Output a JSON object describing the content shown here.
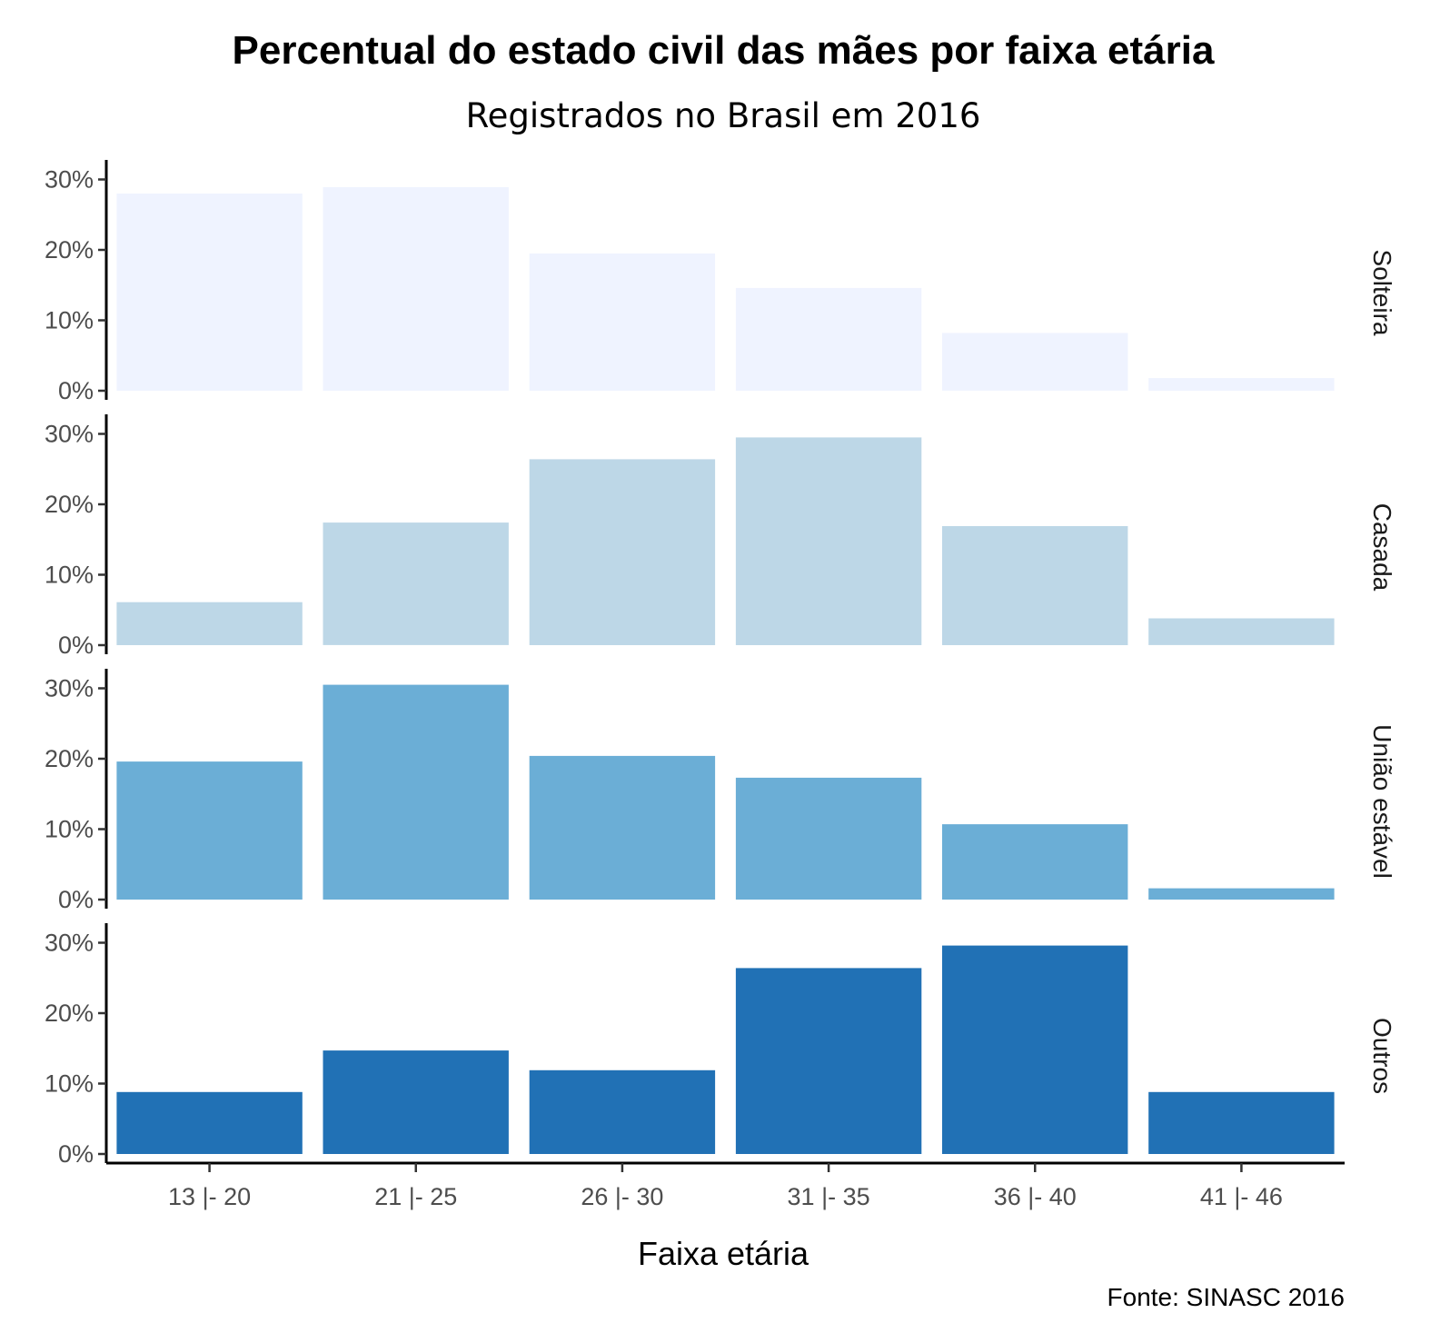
{
  "chart_data": {
    "type": "bar",
    "title": "Percentual do estado civil das mães por faixa etária",
    "subtitle": "Registrados no Brasil em 2016",
    "xlabel": "Faixa etária",
    "ylabel": "",
    "caption": "Fonte: SINASC 2016",
    "categories": [
      "13 |- 20",
      "21 |- 25",
      "26 |- 30",
      "31 |- 35",
      "36 |- 40",
      "41 |- 46"
    ],
    "yticks": [
      0,
      10,
      20,
      30
    ],
    "ytick_labels": [
      "0%",
      "10%",
      "20%",
      "30%"
    ],
    "ylim": [
      0,
      32
    ],
    "facet": "rows",
    "grid": false,
    "series": [
      {
        "name": "Solteira",
        "color": "#eff3ff",
        "values": [
          28.0,
          28.9,
          19.5,
          14.6,
          8.2,
          1.8
        ]
      },
      {
        "name": "Casada",
        "color": "#bdd7e7",
        "values": [
          6.1,
          17.4,
          26.4,
          29.5,
          16.9,
          3.8
        ]
      },
      {
        "name": "União estável",
        "color": "#6baed6",
        "values": [
          19.6,
          30.5,
          20.4,
          17.3,
          10.7,
          1.6
        ]
      },
      {
        "name": "Outros",
        "color": "#2171b5",
        "values": [
          8.8,
          14.7,
          11.9,
          26.4,
          29.6,
          8.8
        ]
      }
    ]
  }
}
